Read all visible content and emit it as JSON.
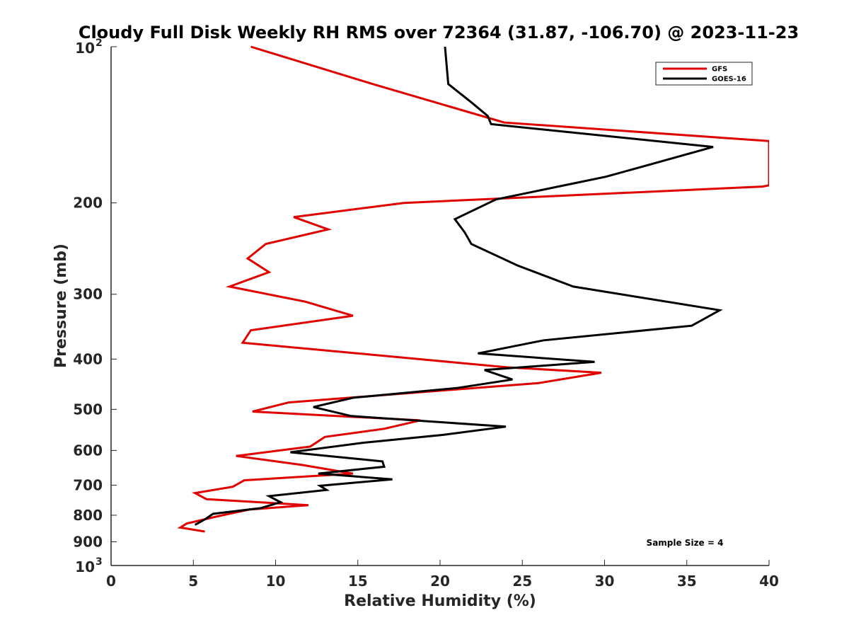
{
  "chart_data": {
    "type": "line",
    "title": "Cloudy Full Disk Weekly RH RMS over 72364 (31.87, -106.70) @ 2023-11-23",
    "xlabel": "Relative Humidity (%)",
    "ylabel": "Pressure (mb)",
    "xlim": [
      0,
      40
    ],
    "ylim": [
      1000,
      100
    ],
    "y_scale": "log-reversed",
    "x_ticks": [
      "0",
      "5",
      "10",
      "15",
      "20",
      "25",
      "30",
      "35",
      "40"
    ],
    "y_ticks": [
      {
        "value": 100,
        "base": "10",
        "sup": "2"
      },
      {
        "value": 200,
        "label": "200"
      },
      {
        "value": 300,
        "label": "300"
      },
      {
        "value": 400,
        "label": "400"
      },
      {
        "value": 500,
        "label": "500"
      },
      {
        "value": 600,
        "label": "600"
      },
      {
        "value": 700,
        "label": "700"
      },
      {
        "value": 800,
        "label": "800"
      },
      {
        "value": 900,
        "label": "900"
      },
      {
        "value": 1000,
        "base": "10",
        "sup": "3"
      }
    ],
    "legend": {
      "location": "top-right"
    },
    "annotation": "Sample Size = 4",
    "series": [
      {
        "name": "GFS",
        "color": "#e00000",
        "points": [
          [
            8.5,
            100
          ],
          [
            15.9,
            118
          ],
          [
            23.9,
            140
          ],
          [
            40.0,
            152
          ],
          [
            40.0,
            185
          ],
          [
            39.6,
            186
          ],
          [
            17.8,
            200
          ],
          [
            11.1,
            213
          ],
          [
            13.2,
            225
          ],
          [
            9.4,
            240
          ],
          [
            8.3,
            256
          ],
          [
            9.6,
            272
          ],
          [
            7.2,
            290
          ],
          [
            11.8,
            310
          ],
          [
            14.7,
            330
          ],
          [
            8.5,
            352
          ],
          [
            8.0,
            372
          ],
          [
            24.1,
            415
          ],
          [
            29.8,
            425
          ],
          [
            26.0,
            445
          ],
          [
            10.8,
            485
          ],
          [
            8.6,
            505
          ],
          [
            18.8,
            525
          ],
          [
            16.6,
            545
          ],
          [
            13.0,
            565
          ],
          [
            12.1,
            590
          ],
          [
            7.6,
            615
          ],
          [
            11.6,
            640
          ],
          [
            14.7,
            665
          ],
          [
            8.1,
            685
          ],
          [
            7.4,
            705
          ],
          [
            5.1,
            725
          ],
          [
            5.8,
            745
          ],
          [
            12.0,
            765
          ],
          [
            8.4,
            780
          ],
          [
            6.4,
            805
          ],
          [
            4.6,
            830
          ],
          [
            4.2,
            845
          ],
          [
            5.7,
            860
          ]
        ]
      },
      {
        "name": "GOES-16",
        "color": "#000000",
        "points": [
          [
            20.3,
            100
          ],
          [
            20.5,
            118
          ],
          [
            21.9,
            128
          ],
          [
            22.9,
            136
          ],
          [
            23.1,
            141
          ],
          [
            36.6,
            156
          ],
          [
            30.1,
            178
          ],
          [
            23.4,
            197
          ],
          [
            20.9,
            215
          ],
          [
            21.5,
            228
          ],
          [
            21.9,
            240
          ],
          [
            24.7,
            264
          ],
          [
            28.1,
            290
          ],
          [
            37.0,
            322
          ],
          [
            35.3,
            345
          ],
          [
            26.3,
            368
          ],
          [
            22.3,
            390
          ],
          [
            29.4,
            405
          ],
          [
            22.7,
            420
          ],
          [
            24.4,
            438
          ],
          [
            21.0,
            455
          ],
          [
            14.7,
            475
          ],
          [
            12.3,
            495
          ],
          [
            14.6,
            515
          ],
          [
            24.0,
            540
          ],
          [
            20.2,
            560
          ],
          [
            15.3,
            580
          ],
          [
            10.9,
            605
          ],
          [
            16.5,
            630
          ],
          [
            16.6,
            645
          ],
          [
            12.6,
            665
          ],
          [
            17.1,
            682
          ],
          [
            12.7,
            702
          ],
          [
            13.1,
            715
          ],
          [
            9.6,
            735
          ],
          [
            10.3,
            755
          ],
          [
            9.1,
            775
          ],
          [
            6.2,
            795
          ],
          [
            5.7,
            815
          ],
          [
            5.1,
            835
          ]
        ]
      }
    ]
  }
}
